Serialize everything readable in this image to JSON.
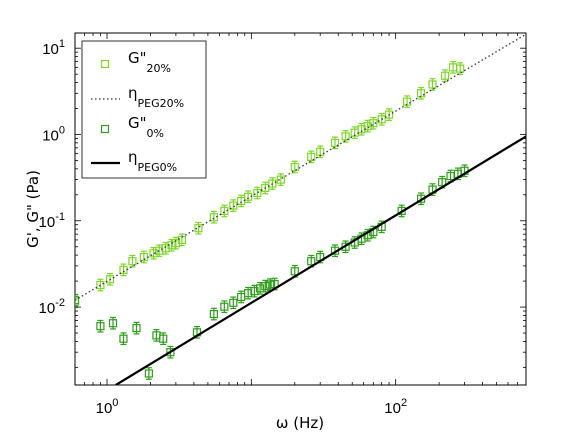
{
  "chart_data": {
    "type": "scatter",
    "title": "",
    "xlabel": "ω (Hz)",
    "ylabel": "G', G\" (Pa)",
    "x_scale": "log",
    "y_scale": "log",
    "xlim": [
      0.6,
      800
    ],
    "ylim": [
      0.00125,
      15
    ],
    "x_ticks": [
      {
        "value": 1,
        "base": "10",
        "exp": "0"
      },
      {
        "value": 100,
        "base": "10",
        "exp": "2"
      }
    ],
    "y_ticks": [
      {
        "value": 0.01,
        "base": "10",
        "exp": "-2"
      },
      {
        "value": 0.1,
        "base": "10",
        "exp": "-1"
      },
      {
        "value": 1,
        "base": "10",
        "exp": "0"
      },
      {
        "value": 10,
        "base": "10",
        "exp": "1"
      }
    ],
    "grid": false,
    "legend_position": "top-left",
    "legend": [
      {
        "base": "G\"",
        "sub": "20%",
        "kind": "marker",
        "color": "#7dd62a"
      },
      {
        "base": "η",
        "sub": "PEG20%",
        "kind": "dotted-line",
        "color": "#333333"
      },
      {
        "base": "G\"",
        "sub": "0%",
        "kind": "marker",
        "color": "#2e9e1a"
      },
      {
        "base": "η",
        "sub": "PEG0%",
        "kind": "solid-line",
        "color": "#000000"
      }
    ],
    "series": [
      {
        "id": "g20",
        "kind": "points",
        "color": "#7dd62a",
        "x": [
          0.6,
          0.9,
          1.05,
          1.3,
          1.5,
          1.8,
          2.1,
          2.3,
          2.55,
          2.8,
          3.0,
          3.3,
          4.3,
          5.5,
          6.5,
          7.5,
          8.5,
          9.5,
          11,
          12.5,
          14,
          16,
          20,
          26,
          30,
          38,
          45,
          52,
          58,
          64,
          70,
          80,
          90,
          120,
          150,
          180,
          220,
          250,
          280
        ],
        "y": [
          0.0115,
          0.018,
          0.021,
          0.027,
          0.034,
          0.038,
          0.042,
          0.045,
          0.048,
          0.052,
          0.055,
          0.06,
          0.082,
          0.11,
          0.13,
          0.15,
          0.17,
          0.19,
          0.21,
          0.24,
          0.27,
          0.3,
          0.42,
          0.55,
          0.63,
          0.8,
          0.95,
          1.05,
          1.15,
          1.25,
          1.35,
          1.5,
          1.7,
          2.4,
          3.0,
          3.8,
          4.8,
          6.0,
          5.8
        ],
        "err": 0.12
      },
      {
        "id": "g0",
        "kind": "points",
        "color": "#2e9e1a",
        "x": [
          0.6,
          0.9,
          1.1,
          1.3,
          1.6,
          1.95,
          2.2,
          2.45,
          2.75,
          4.2,
          5.5,
          6.5,
          7.5,
          8.5,
          9.5,
          10.5,
          11.5,
          12.5,
          13.5,
          14.5,
          20,
          26,
          30,
          38,
          45,
          52,
          58,
          64,
          70,
          80,
          110,
          150,
          180,
          210,
          240,
          270,
          300
        ],
        "y": [
          0.012,
          0.006,
          0.0065,
          0.0043,
          0.0057,
          0.0017,
          0.0047,
          0.0043,
          0.003,
          0.0051,
          0.0083,
          0.0101,
          0.0112,
          0.0131,
          0.0145,
          0.0153,
          0.0165,
          0.0175,
          0.0182,
          0.0185,
          0.026,
          0.034,
          0.038,
          0.045,
          0.05,
          0.056,
          0.062,
          0.068,
          0.074,
          0.085,
          0.13,
          0.18,
          0.23,
          0.28,
          0.33,
          0.35,
          0.38
        ],
        "err": 0.12
      },
      {
        "id": "eta20",
        "kind": "dotted-line",
        "color": "#333333",
        "x": [
          0.6,
          800
        ],
        "y": [
          0.012,
          14.5
        ]
      },
      {
        "id": "eta0",
        "kind": "solid-line",
        "color": "#000000",
        "x": [
          1.15,
          800
        ],
        "y": [
          0.00125,
          0.95
        ]
      }
    ]
  }
}
